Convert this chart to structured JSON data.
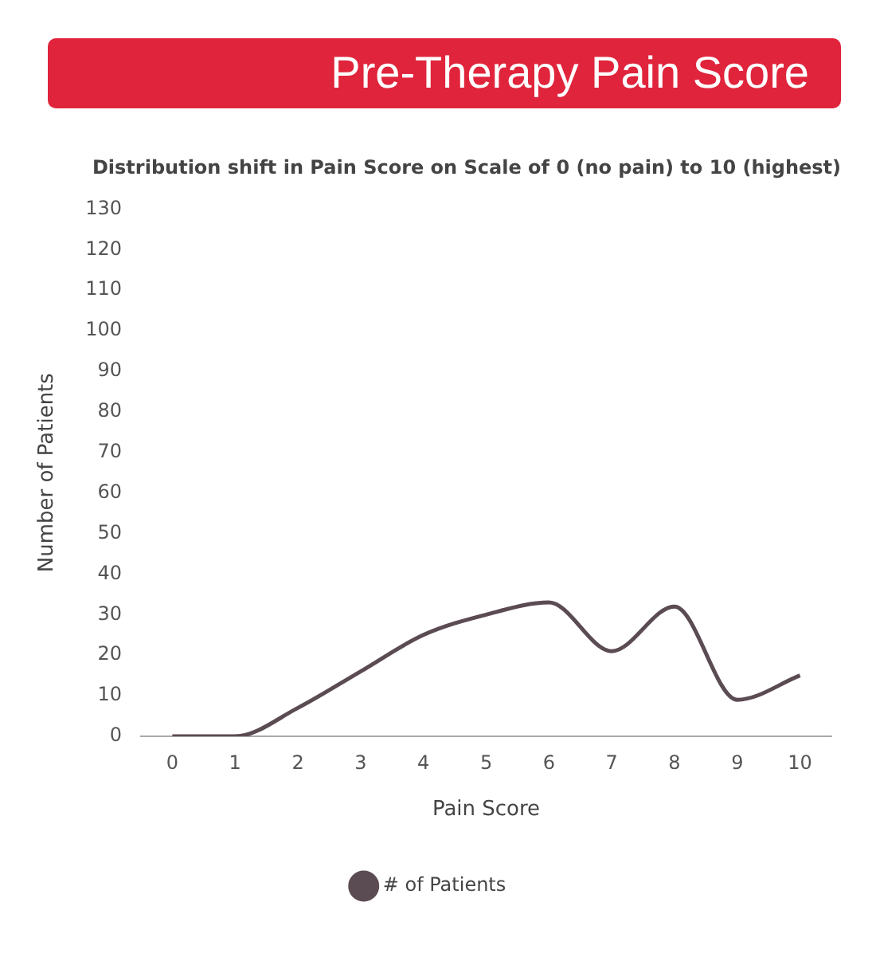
{
  "chart_data": {
    "type": "line",
    "title": "Pre-Therapy Pain Score",
    "subtitle": "Distribution shift in Pain Score on Scale of 0 (no pain) to 10 (highest)",
    "xlabel": "Pain Score",
    "ylabel": "Number of Patients",
    "categories": [
      "0",
      "1",
      "2",
      "3",
      "4",
      "5",
      "6",
      "7",
      "8",
      "9",
      "10"
    ],
    "series": [
      {
        "name": "# of Patients",
        "color": "#5b4b53",
        "values": [
          0,
          0,
          7,
          16,
          25,
          30,
          33,
          21,
          32,
          9,
          15
        ]
      }
    ],
    "ylim": [
      0,
      130
    ],
    "yticks": [
      0,
      10,
      20,
      30,
      40,
      50,
      60,
      70,
      80,
      90,
      100,
      110,
      120,
      130
    ],
    "grid": false,
    "legend": "bottom",
    "marker": "none",
    "line_style": "solid"
  }
}
